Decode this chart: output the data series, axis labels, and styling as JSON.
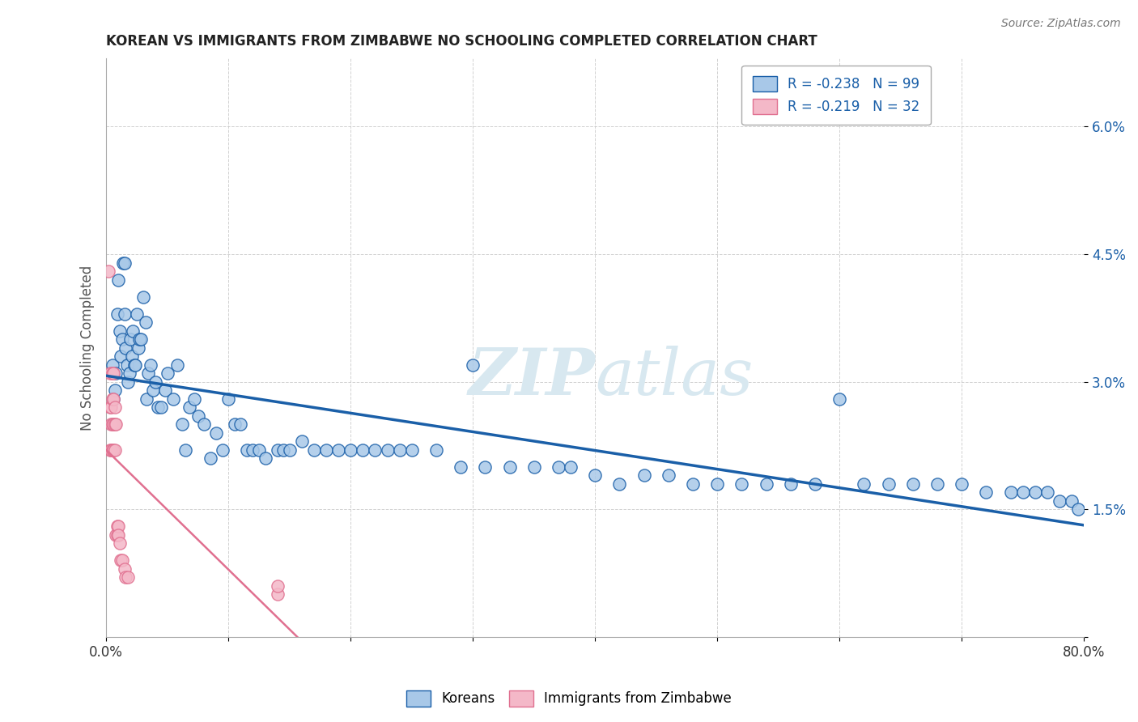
{
  "title": "KOREAN VS IMMIGRANTS FROM ZIMBABWE NO SCHOOLING COMPLETED CORRELATION CHART",
  "source": "Source: ZipAtlas.com",
  "ylabel": "No Schooling Completed",
  "xlabel": "",
  "legend_korean": "Koreans",
  "legend_zim": "Immigrants from Zimbabwe",
  "R_korean": -0.238,
  "N_korean": 99,
  "R_zim": -0.219,
  "N_zim": 32,
  "xlim": [
    0,
    0.8
  ],
  "ylim": [
    0,
    0.068
  ],
  "xticks": [
    0.0,
    0.1,
    0.2,
    0.3,
    0.4,
    0.5,
    0.6,
    0.7,
    0.8
  ],
  "yticks": [
    0.0,
    0.015,
    0.03,
    0.045,
    0.06
  ],
  "ytick_labels": [
    "",
    "1.5%",
    "3.0%",
    "4.5%",
    "6.0%"
  ],
  "xtick_labels": [
    "0.0%",
    "",
    "",
    "",
    "",
    "",
    "",
    "",
    "80.0%"
  ],
  "blue_color": "#a8c8e8",
  "pink_color": "#f4b8c8",
  "blue_line_color": "#1a5fa8",
  "pink_line_color": "#e07090",
  "watermark_color": "#d8e8f0",
  "background_color": "#ffffff",
  "korean_x": [
    0.005,
    0.006,
    0.007,
    0.008,
    0.009,
    0.01,
    0.011,
    0.012,
    0.013,
    0.014,
    0.015,
    0.015,
    0.016,
    0.017,
    0.018,
    0.019,
    0.02,
    0.021,
    0.022,
    0.023,
    0.024,
    0.025,
    0.026,
    0.027,
    0.028,
    0.03,
    0.032,
    0.033,
    0.034,
    0.036,
    0.038,
    0.04,
    0.042,
    0.045,
    0.048,
    0.05,
    0.055,
    0.058,
    0.062,
    0.065,
    0.068,
    0.072,
    0.075,
    0.08,
    0.085,
    0.09,
    0.095,
    0.1,
    0.105,
    0.11,
    0.115,
    0.12,
    0.125,
    0.13,
    0.14,
    0.145,
    0.15,
    0.16,
    0.17,
    0.18,
    0.19,
    0.2,
    0.21,
    0.22,
    0.23,
    0.24,
    0.25,
    0.27,
    0.29,
    0.3,
    0.31,
    0.33,
    0.35,
    0.37,
    0.38,
    0.4,
    0.42,
    0.44,
    0.46,
    0.48,
    0.5,
    0.52,
    0.54,
    0.56,
    0.58,
    0.6,
    0.62,
    0.64,
    0.66,
    0.68,
    0.7,
    0.72,
    0.74,
    0.75,
    0.76,
    0.77,
    0.78,
    0.79,
    0.795
  ],
  "korean_y": [
    0.032,
    0.028,
    0.029,
    0.031,
    0.038,
    0.042,
    0.036,
    0.033,
    0.035,
    0.044,
    0.044,
    0.038,
    0.034,
    0.032,
    0.03,
    0.031,
    0.035,
    0.033,
    0.036,
    0.032,
    0.032,
    0.038,
    0.034,
    0.035,
    0.035,
    0.04,
    0.037,
    0.028,
    0.031,
    0.032,
    0.029,
    0.03,
    0.027,
    0.027,
    0.029,
    0.031,
    0.028,
    0.032,
    0.025,
    0.022,
    0.027,
    0.028,
    0.026,
    0.025,
    0.021,
    0.024,
    0.022,
    0.028,
    0.025,
    0.025,
    0.022,
    0.022,
    0.022,
    0.021,
    0.022,
    0.022,
    0.022,
    0.023,
    0.022,
    0.022,
    0.022,
    0.022,
    0.022,
    0.022,
    0.022,
    0.022,
    0.022,
    0.022,
    0.02,
    0.032,
    0.02,
    0.02,
    0.02,
    0.02,
    0.02,
    0.019,
    0.018,
    0.019,
    0.019,
    0.018,
    0.018,
    0.018,
    0.018,
    0.018,
    0.018,
    0.028,
    0.018,
    0.018,
    0.018,
    0.018,
    0.018,
    0.017,
    0.017,
    0.017,
    0.017,
    0.017,
    0.016,
    0.016,
    0.015
  ],
  "zim_x": [
    0.002,
    0.003,
    0.003,
    0.003,
    0.004,
    0.004,
    0.004,
    0.005,
    0.005,
    0.005,
    0.005,
    0.006,
    0.006,
    0.006,
    0.006,
    0.007,
    0.007,
    0.007,
    0.008,
    0.008,
    0.009,
    0.009,
    0.01,
    0.01,
    0.011,
    0.012,
    0.013,
    0.015,
    0.016,
    0.018,
    0.14,
    0.14
  ],
  "zim_y": [
    0.043,
    0.031,
    0.027,
    0.022,
    0.027,
    0.025,
    0.022,
    0.031,
    0.028,
    0.025,
    0.022,
    0.031,
    0.028,
    0.025,
    0.022,
    0.027,
    0.025,
    0.022,
    0.025,
    0.012,
    0.013,
    0.012,
    0.013,
    0.012,
    0.011,
    0.009,
    0.009,
    0.008,
    0.007,
    0.007,
    0.005,
    0.006
  ]
}
